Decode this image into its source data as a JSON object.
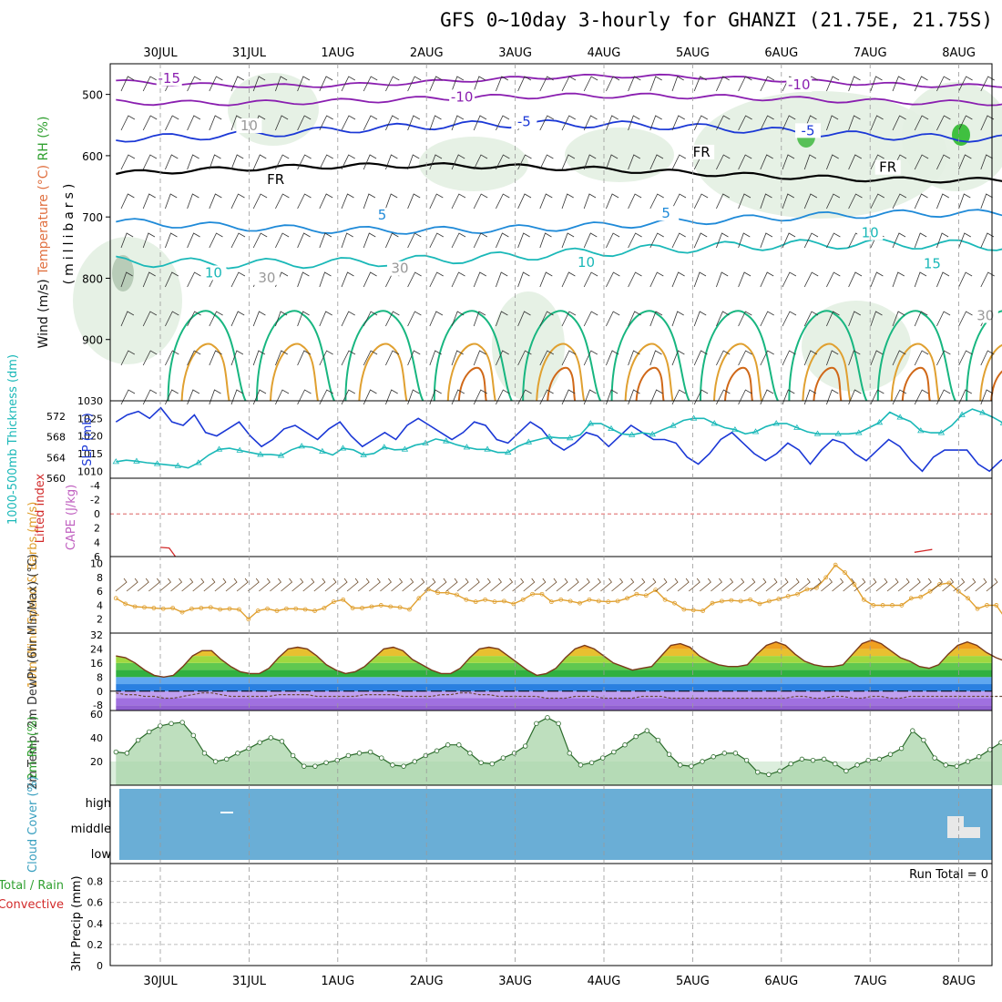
{
  "title": "GFS 0~10day 3-hourly for GHANZI (21.75E, 21.75S)",
  "colors": {
    "purple": "#8a1fb0",
    "blue": "#1b38d6",
    "ltblue": "#1f8ad8",
    "teal": "#1ab8b8",
    "green": "#18b680",
    "orange": "#e0a030",
    "dkorange": "#d06818",
    "red": "#d22a2a",
    "cloud": "#6aaed6",
    "rhfill": "#dceedd"
  },
  "dates": [
    "30JUL",
    "31JUL",
    "1AUG",
    "2AUG",
    "3AUG",
    "4AUG",
    "5AUG",
    "6AUG",
    "7AUG",
    "8AUG"
  ],
  "chart_data": [
    {
      "type": "contour",
      "panel": "upper-air",
      "ylabel": "(millibars)",
      "side_labels": [
        "Wind (m/s)",
        "Temperature (°C)",
        "RH (%)"
      ],
      "y_ticks": [
        500,
        600,
        700,
        800,
        900
      ],
      "ylim": [
        1000,
        450
      ],
      "contour_labels": [
        {
          "text": "-15",
          "day": 0.1,
          "p": 480,
          "color": "purple"
        },
        {
          "text": "-10",
          "day": 3.4,
          "p": 510,
          "color": "purple"
        },
        {
          "text": "-10",
          "day": 7.2,
          "p": 490,
          "color": "purple"
        },
        {
          "text": "-5",
          "day": 4.1,
          "p": 550,
          "color": "blue"
        },
        {
          "text": "-5",
          "day": 7.3,
          "p": 565,
          "color": "blue"
        },
        {
          "text": "FR",
          "day": 1.3,
          "p": 645,
          "color": "black"
        },
        {
          "text": "FR",
          "day": 6.1,
          "p": 600,
          "color": "black"
        },
        {
          "text": "FR",
          "day": 8.2,
          "p": 625,
          "color": "black"
        },
        {
          "text": "5",
          "day": 2.5,
          "p": 703,
          "color": "ltblue"
        },
        {
          "text": "5",
          "day": 5.7,
          "p": 700,
          "color": "ltblue"
        },
        {
          "text": "10",
          "day": 0.6,
          "p": 797,
          "color": "teal"
        },
        {
          "text": "10",
          "day": 4.8,
          "p": 780,
          "color": "teal"
        },
        {
          "text": "10",
          "day": 8.0,
          "p": 732,
          "color": "teal"
        },
        {
          "text": "15",
          "day": 8.7,
          "p": 782,
          "color": "teal"
        },
        {
          "text": "10",
          "day": 1.0,
          "p": 557,
          "color": "gray"
        },
        {
          "text": "30",
          "day": 2.7,
          "p": 790,
          "color": "gray"
        },
        {
          "text": "30",
          "day": 9.3,
          "p": 867,
          "color": "gray"
        },
        {
          "text": "30",
          "day": 1.2,
          "p": 805,
          "color": "gray"
        }
      ]
    },
    {
      "type": "line",
      "panel": "thickness-slp",
      "ylabel": "1000-500mb Thickness (dm)",
      "ylabel2": "SLP (mb)",
      "y_left_ticks": [
        560,
        564,
        568,
        572
      ],
      "y_right_ticks": [
        1010,
        1015,
        1020,
        1025,
        1030
      ],
      "series": [
        {
          "name": "SLP (mb)",
          "color": "blue",
          "values": [
            1024,
            1026,
            1027,
            1025,
            1028,
            1024,
            1023,
            1026,
            1021,
            1020,
            1022,
            1024,
            1020,
            1017,
            1019,
            1022,
            1023,
            1021,
            1019,
            1022,
            1024,
            1020,
            1017,
            1019,
            1021,
            1019,
            1023,
            1025,
            1023,
            1021,
            1019,
            1021,
            1024,
            1023,
            1019,
            1018,
            1021,
            1024,
            1022,
            1018,
            1016,
            1018,
            1021,
            1020,
            1017,
            1020,
            1023,
            1021,
            1019,
            1019,
            1018,
            1014,
            1012,
            1015,
            1019,
            1021,
            1018,
            1015,
            1013,
            1015,
            1018,
            1016,
            1012,
            1016,
            1019,
            1018,
            1015,
            1013,
            1016,
            1019,
            1017,
            1013,
            1010,
            1014,
            1016,
            1016,
            1016,
            1012,
            1010,
            1013,
            1015,
            1016,
            1018
          ]
        },
        {
          "name": "Thickness (dm)",
          "color": "teal",
          "values": [
            563.2,
            563.5,
            563.3,
            563.0,
            562.8,
            562.6,
            562.4,
            562.0,
            563.0,
            564.5,
            565.6,
            565.8,
            565.4,
            565.0,
            564.6,
            564.6,
            564.4,
            565.5,
            566.2,
            566.0,
            565.2,
            564.5,
            565.8,
            565.5,
            564.5,
            564.8,
            566.0,
            565.5,
            565.6,
            566.4,
            566.8,
            567.6,
            567.2,
            566.5,
            566.0,
            565.6,
            565.6,
            565.0,
            565.0,
            566.2,
            567.0,
            567.5,
            568.0,
            567.8,
            567.8,
            568.4,
            570.6,
            570.6,
            569.6,
            568.6,
            568.4,
            568.8,
            568.5,
            569.4,
            570.2,
            571.2,
            571.6,
            571.6,
            570.6,
            569.8,
            569.4,
            568.6,
            569.0,
            570.0,
            570.6,
            570.6,
            569.8,
            569.0,
            568.6,
            568.6,
            568.6,
            568.6,
            568.8,
            569.8,
            570.8,
            572.8,
            571.8,
            571.0,
            569.2,
            568.8,
            568.8,
            570.2,
            572.3,
            573.4,
            572.7,
            571.8,
            570.7,
            570.0,
            569.7,
            570.2
          ]
        }
      ]
    },
    {
      "type": "line",
      "panel": "lifted-cape",
      "ylabel": "Lifted Index",
      "ylabel2": "CAPE (J/kg)",
      "y_ticks": [
        -4,
        -2,
        0,
        2,
        4,
        6
      ],
      "series": [
        {
          "name": "Lifted Index",
          "color": "red",
          "segments": [
            {
              "days": [
                0.0,
                0.1,
                0.17
              ],
              "values": [
                4.7,
                4.8,
                6.0
              ]
            },
            {
              "days": [
                8.5,
                8.6,
                8.7
              ],
              "values": [
                5.4,
                5.2,
                5.0
              ]
            }
          ]
        }
      ]
    },
    {
      "type": "line",
      "panel": "10m-wind",
      "ylabel": "10m Wind Speed & Barbs (m/s)",
      "y_ticks": [
        2,
        4,
        6,
        8,
        10
      ],
      "ylim": [
        0,
        10
      ],
      "series": [
        {
          "name": "10m Wind Speed",
          "color": "orange",
          "values": [
            5.0,
            4.2,
            3.8,
            3.7,
            3.6,
            3.5,
            3.6,
            3.0,
            3.5,
            3.6,
            3.7,
            3.4,
            3.5,
            3.4,
            2.0,
            3.2,
            3.5,
            3.2,
            3.5,
            3.5,
            3.4,
            3.2,
            3.6,
            4.5,
            4.8,
            3.6,
            3.6,
            3.8,
            4.0,
            3.8,
            3.7,
            3.4,
            5.0,
            6.3,
            5.8,
            5.8,
            5.5,
            4.8,
            4.5,
            4.8,
            4.5,
            4.6,
            4.2,
            4.8,
            5.6,
            5.6,
            4.5,
            4.8,
            4.6,
            4.3,
            4.8,
            4.6,
            4.5,
            4.6,
            5.0,
            5.6,
            5.4,
            6.2,
            4.8,
            4.3,
            3.4,
            3.3,
            3.2,
            4.3,
            4.6,
            4.7,
            4.6,
            4.8,
            4.2,
            4.6,
            4.9,
            5.3,
            5.6,
            6.3,
            6.5,
            8.0,
            9.8,
            8.7,
            7.0,
            4.8,
            4.0,
            4.0,
            4.0,
            4.0,
            5.0,
            5.2,
            6.0,
            7.0,
            7.2,
            6.0,
            5.0,
            3.5,
            4.0,
            4.0,
            2.0,
            2.0,
            2.2,
            3.3
          ]
        }
      ]
    },
    {
      "type": "area",
      "panel": "temp-dewpt",
      "ylabel": "2m Temp, 2m DewPt (6hr Min/Max) (°C)",
      "y_ticks": [
        -8,
        0,
        8,
        16,
        24,
        32
      ],
      "series": [
        {
          "name": "2m Temp",
          "color": "dkorange",
          "values": [
            20,
            19,
            16,
            12,
            9,
            8,
            9,
            14,
            20,
            23,
            23,
            18,
            14,
            11,
            10,
            10,
            13,
            19,
            24,
            25,
            24,
            20,
            15,
            12,
            10,
            11,
            14,
            19,
            24,
            25,
            23,
            18,
            15,
            12,
            10,
            10,
            13,
            19,
            24,
            25,
            24,
            20,
            16,
            12,
            9,
            10,
            13,
            19,
            24,
            26,
            24,
            20,
            16,
            14,
            12,
            13,
            14,
            20,
            26,
            27,
            25,
            20,
            17,
            15,
            14,
            14,
            15,
            21,
            26,
            28,
            26,
            21,
            17,
            15,
            14,
            14,
            15,
            21,
            27,
            29,
            27,
            23,
            19,
            17,
            14,
            13,
            15,
            21,
            26,
            28,
            26,
            22,
            19,
            17,
            15,
            15,
            16
          ]
        },
        {
          "name": "2m DewPt",
          "color": "dkgray",
          "values": [
            -1,
            -2,
            -2,
            -3,
            -3,
            -4,
            -4,
            -3,
            -2,
            -1,
            -1,
            -2,
            -3,
            -3,
            -3,
            -3,
            -3,
            -2,
            -2,
            -2,
            -2,
            -3,
            -3,
            -3,
            -3,
            -3,
            -2,
            -2,
            -2,
            -2,
            -3,
            -3,
            -3,
            -3,
            -2,
            -2,
            -1,
            -1,
            -2,
            -2,
            -3,
            -3,
            -3,
            -3,
            -3,
            -4,
            -4,
            -4,
            -3,
            -3,
            -3,
            -4,
            -4,
            -4,
            -4,
            -3,
            -3,
            -3,
            -4,
            -4,
            -4,
            -4,
            -4,
            -4,
            -4,
            -4,
            -4,
            -4,
            -4,
            -4,
            -4,
            -3,
            -3,
            -4,
            -4,
            -3,
            -3,
            -4,
            -4,
            -3,
            -3,
            -4,
            -4,
            -3,
            -3,
            -3,
            -3,
            -3,
            -3,
            -3,
            -3,
            -3,
            -3,
            -3,
            -3,
            -3,
            -3
          ]
        }
      ]
    },
    {
      "type": "area",
      "panel": "2m-rh",
      "ylabel": "2m RH (%)",
      "y_ticks": [
        20,
        40,
        60
      ],
      "series": [
        {
          "name": "2m RH",
          "color": "green",
          "values": [
            28,
            27,
            38,
            45,
            50,
            52,
            53,
            42,
            27,
            20,
            22,
            27,
            31,
            36,
            40,
            37,
            25,
            16,
            16,
            19,
            21,
            25,
            27,
            28,
            23,
            17,
            16,
            20,
            25,
            29,
            34,
            34,
            27,
            19,
            18,
            23,
            27,
            33,
            52,
            57,
            52,
            27,
            17,
            19,
            23,
            28,
            34,
            41,
            46,
            38,
            26,
            17,
            16,
            20,
            24,
            27,
            27,
            21,
            11,
            9,
            12,
            18,
            22,
            21,
            22,
            18,
            12,
            17,
            21,
            22,
            26,
            31,
            46,
            38,
            23,
            17,
            16,
            20,
            24,
            30,
            36,
            38,
            38,
            38
          ]
        }
      ]
    },
    {
      "type": "heatmap",
      "panel": "cloud-cover",
      "ylabel": "Cloud Cover (%)",
      "y_categories": [
        "high",
        "middle",
        "low"
      ]
    },
    {
      "type": "bar",
      "panel": "precip",
      "ylabel": "3hr Precip (mm)",
      "side_label_1": "Total / Rain",
      "side_label_2": "Convective",
      "y_ticks": [
        0,
        0.2,
        0.4,
        0.6,
        0.8
      ],
      "annotation": "Run Total = 0",
      "values": []
    }
  ]
}
